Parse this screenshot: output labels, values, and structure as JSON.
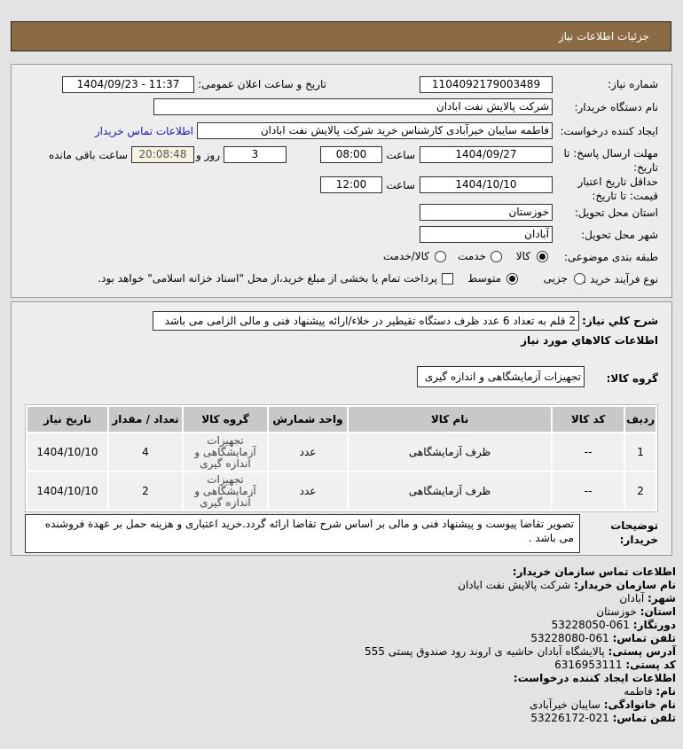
{
  "header": {
    "title": "جزئیات اطلاعات نیاز"
  },
  "form": {
    "need_number_label": "شماره نیاز:",
    "need_number": "1104092179003489",
    "announce_label": "تاریخ و ساعت اعلان عمومی:",
    "announce_value": "1404/09/23 - 11:37",
    "buyer_label": "نام دستگاه خریدار:",
    "buyer": "شرکت پالایش نفت ابادان",
    "creator_label": "ایجاد کننده درخواست:",
    "creator": "فاطمه سایبان خیرآبادی کارشناس خرید شرکت پالایش نفت ابادان",
    "contact_link": "اطلاعات تماس خریدار",
    "deadline_label": "مهلت ارسال پاسخ: تا تاریخ:",
    "deadline_date": "1404/09/27",
    "time_label": "ساعت",
    "deadline_time": "08:00",
    "days": "3",
    "days_label": "روز و",
    "remaining": "20:08:48",
    "remaining_label": "ساعت باقی مانده",
    "validity_label": "حداقل تاریخ اعتبار قیمت: تا تاریخ:",
    "validity_date": "1404/10/10",
    "validity_time": "12:00",
    "province_label": "استان محل تحویل:",
    "province": "خوزستان",
    "city_label": "شهر محل تحویل:",
    "city": "آبادان",
    "category_label": "طبقه بندی موضوعی:",
    "category_options": [
      "کالا",
      "خدمت",
      "کالا/خدمت"
    ],
    "category_selected": "کالا",
    "process_label": "نوع فرآیند خرید :",
    "process_options": [
      "جزیی",
      "متوسط"
    ],
    "process_selected": "متوسط",
    "payment_note": "پرداخت تمام یا بخشی از مبلغ خرید،از محل \"اسناد خزانه اسلامی\" خواهد بود."
  },
  "details": {
    "desc_label": "شرح کلي نیاز:",
    "desc": "2 قلم به تعداد 6 عدد ظرف دستگاه تقیطیر در خلاء/ارائه پیشنهاد فنی و مالی الزامی می باشد",
    "goods_heading": "اطلاعات کالاهاي مورد نیاز",
    "group_label": "گروه کالا:",
    "group": "تجهیزات آزمایشگاهی و اندازه گیری",
    "columns": [
      "ردیف",
      "کد کالا",
      "نام کالا",
      "واحد شمارش",
      "گروه کالا",
      "تعداد / مقدار",
      "تاریخ نیاز"
    ],
    "rows": [
      [
        "1",
        "--",
        "ظرف آزمایشگاهی",
        "عدد",
        "تجهیزات آزمایشگاهی و اندازه گیری",
        "4",
        "1404/10/10"
      ],
      [
        "2",
        "--",
        "ظرف آزمایشگاهی",
        "عدد",
        "تجهیزات آزمایشگاهی و اندازه گیری",
        "2",
        "1404/10/10"
      ]
    ],
    "notes_label": "توضیحات خریدار:",
    "notes": "تصویر تقاضا پیوست و پیشنهاد فنی و مالی بر اساس شرح تقاضا ارائه گردد.خرید اعتباری و هزینه حمل بر عهدة فروشنده می باشد ."
  },
  "contact": {
    "org_heading": "اطلاعات تماس سازمان خریدار:",
    "lines": [
      {
        "k": "نام سازمان خریدار:",
        "v": "شرکت پالایش نفت ابادان"
      },
      {
        "k": "شهر:",
        "v": "آبادان"
      },
      {
        "k": "استان:",
        "v": "خوزستان"
      },
      {
        "k": "دورنگار:",
        "v": "061-53228050"
      },
      {
        "k": "تلفن تماس:",
        "v": "061-53228080"
      },
      {
        "k": "آدرس پستی:",
        "v": "پالایشگاه آبادان حاشیه ی اروند رود صندوق پستی 555"
      },
      {
        "k": "کد پستی:",
        "v": "6316953111"
      }
    ],
    "creator_heading": "اطلاعات ایجاد کننده درخواست:",
    "creator_lines": [
      {
        "k": "نام:",
        "v": "فاطمه"
      },
      {
        "k": "نام خانوادگی:",
        "v": "سایبان خیرآبادی"
      },
      {
        "k": "تلفن تماس:",
        "v": "021-53226172"
      }
    ]
  }
}
